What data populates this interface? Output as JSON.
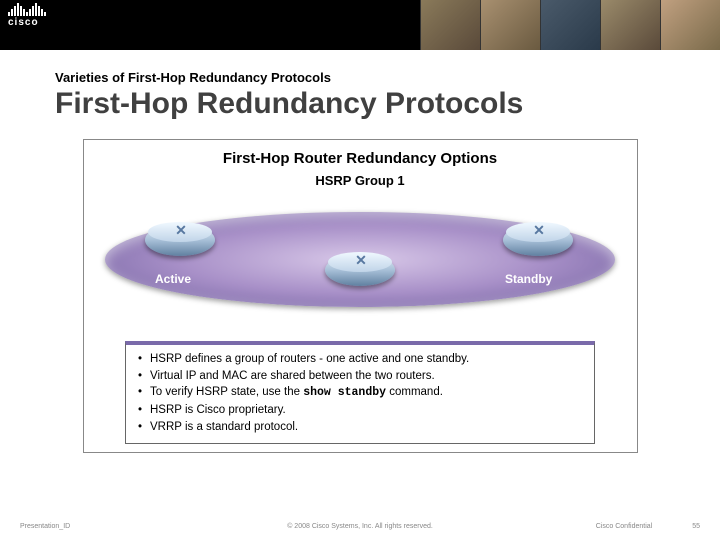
{
  "brand": "cisco",
  "header": {
    "subtitle": "Varieties of First-Hop Redundancy Protocols",
    "title": "First-Hop Redundancy Protocols"
  },
  "figure": {
    "title": "First-Hop Router Redundancy Options",
    "group_label": "HSRP Group 1",
    "router_left_label": "Active",
    "router_right_label": "Standby",
    "oval_gradient": [
      "#d8c8e8",
      "#a890c8",
      "#6a5a9a"
    ],
    "router_body_gradient": [
      "#e8f0f8",
      "#a8c0d8",
      "#6080a0"
    ],
    "box_border_top_color": "#7a6aaa",
    "bullets": [
      {
        "text": "HSRP defines a group of routers - one active and one standby."
      },
      {
        "text_parts": [
          "Virtual IP and MAC are shared between the two routers."
        ]
      },
      {
        "text_parts": [
          "To verify HSRP state, use the ",
          {
            "mono": "show standby"
          },
          " command."
        ]
      },
      {
        "text": "HSRP is Cisco proprietary."
      },
      {
        "text": "VRRP is a standard protocol."
      }
    ]
  },
  "footer": {
    "left": "Presentation_ID",
    "center": "© 2008 Cisco Systems, Inc. All rights reserved.",
    "confidential": "Cisco Confidential",
    "page": "55"
  },
  "logo_bar_heights": [
    4,
    7,
    10,
    13,
    10,
    7,
    4,
    7,
    10,
    13,
    10,
    7,
    4
  ]
}
